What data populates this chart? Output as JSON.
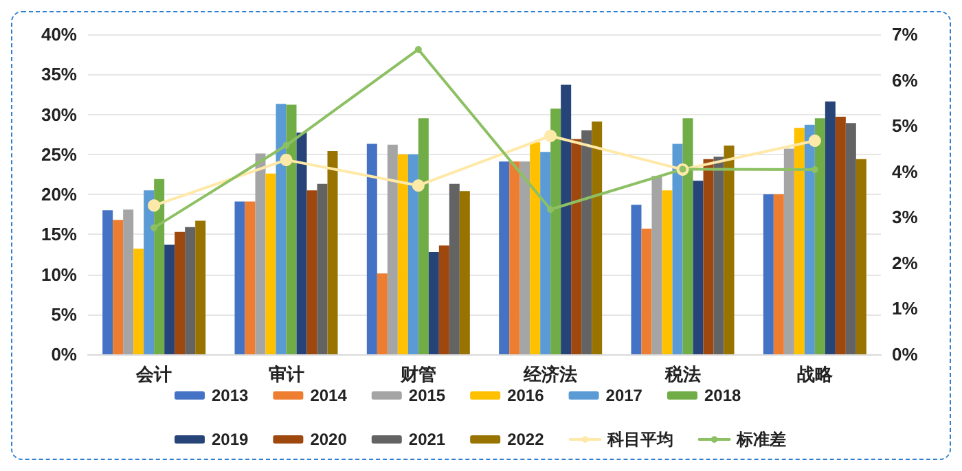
{
  "chart_data": {
    "type": "bar",
    "categories": [
      "会计",
      "审计",
      "财管",
      "经济法",
      "税法",
      "战略"
    ],
    "series": [
      {
        "name": "2013",
        "color": "#4472c4",
        "values": [
          18.0,
          19.1,
          26.3,
          24.1,
          18.7,
          20.0
        ]
      },
      {
        "name": "2014",
        "color": "#ed7d31",
        "values": [
          16.8,
          19.1,
          10.1,
          24.1,
          15.7,
          20.0
        ]
      },
      {
        "name": "2015",
        "color": "#a5a5a5",
        "values": [
          18.1,
          25.1,
          26.2,
          24.1,
          22.3,
          25.7
        ]
      },
      {
        "name": "2016",
        "color": "#ffc000",
        "values": [
          13.2,
          22.6,
          25.0,
          26.5,
          20.5,
          28.3
        ]
      },
      {
        "name": "2017",
        "color": "#5b9bd5",
        "values": [
          20.5,
          31.3,
          25.0,
          25.3,
          26.3,
          28.7
        ]
      },
      {
        "name": "2018",
        "color": "#70ad47",
        "values": [
          21.9,
          31.2,
          29.5,
          30.7,
          29.5,
          29.5
        ]
      },
      {
        "name": "2019",
        "color": "#264478",
        "values": [
          13.7,
          27.7,
          12.8,
          33.7,
          21.7,
          31.6
        ]
      },
      {
        "name": "2020",
        "color": "#9e480e",
        "values": [
          15.3,
          20.5,
          13.6,
          26.9,
          24.4,
          29.7
        ]
      },
      {
        "name": "2021",
        "color": "#636363",
        "values": [
          15.9,
          21.3,
          21.3,
          28.0,
          24.7,
          28.9
        ]
      },
      {
        "name": "2022",
        "color": "#997300",
        "values": [
          16.7,
          25.4,
          20.4,
          29.1,
          26.1,
          24.4
        ]
      },
      {
        "name": "科目平均",
        "type": "line",
        "color": "#ffe9a8",
        "values": [
          18.6,
          24.3,
          21.1,
          27.3,
          23.1,
          26.7
        ]
      },
      {
        "name": "标准差",
        "type": "line",
        "axis": "y2",
        "color": "#8cc063",
        "values": [
          2.77,
          4.57,
          6.67,
          3.17,
          4.05,
          4.04
        ]
      }
    ],
    "ylim": [
      0,
      40
    ],
    "yticks": [
      {
        "value": 0,
        "label": "0%"
      },
      {
        "value": 5,
        "label": "5%"
      },
      {
        "value": 10,
        "label": "10%"
      },
      {
        "value": 15,
        "label": "15%"
      },
      {
        "value": 20,
        "label": "20%"
      },
      {
        "value": 25,
        "label": "25%"
      },
      {
        "value": 30,
        "label": "30%"
      },
      {
        "value": 35,
        "label": "35%"
      },
      {
        "value": 40,
        "label": "40%"
      }
    ],
    "y2lim": [
      0,
      7
    ],
    "y2ticks": [
      {
        "value": 0,
        "label": "0%"
      },
      {
        "value": 1,
        "label": "1%"
      },
      {
        "value": 2,
        "label": "2%"
      },
      {
        "value": 3,
        "label": "3%"
      },
      {
        "value": 4,
        "label": "4%"
      },
      {
        "value": 5,
        "label": "5%"
      },
      {
        "value": 6,
        "label": "6%"
      },
      {
        "value": 7,
        "label": "7%"
      }
    ],
    "grid": "y",
    "legend": "bottom",
    "marker": "circle"
  }
}
